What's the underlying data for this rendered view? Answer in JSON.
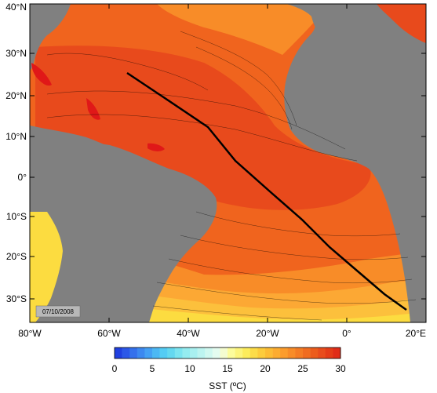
{
  "map": {
    "date_label": "07/10/2008",
    "lon_ticks": [
      "80°W",
      "60°W",
      "40°W",
      "20°W",
      "0°",
      "20°E"
    ],
    "lat_ticks": [
      "40°N",
      "30°N",
      "20°N",
      "10°N",
      "0°",
      "10°S",
      "20°S",
      "30°S"
    ],
    "colors": {
      "land": "#808080",
      "shelf": "#b8b8b8",
      "ocean_26_28": "#f0641e",
      "ocean_28_plus": "#e84a1c",
      "ocean_24_26": "#f88c28",
      "ocean_22_24": "#fca834",
      "ocean_20_22": "#fcc03c",
      "ocean_18_20": "#fcdc40",
      "ocean_16_18": "#fcf050",
      "ocean_cool": "#fcf878",
      "hot_spot": "#e01818",
      "contour": "#000000",
      "cruise_track": "#000000"
    }
  },
  "colorbar": {
    "title": "SST (ºC)",
    "labels": [
      "0",
      "5",
      "10",
      "15",
      "20",
      "25",
      "30"
    ],
    "colors": [
      "#2040e0",
      "#2c58e8",
      "#3470ec",
      "#3c88f0",
      "#44a0f4",
      "#4cb8f4",
      "#54ccf4",
      "#64d8f0",
      "#7ce4f0",
      "#94ecf0",
      "#a8f0f0",
      "#bcf4f0",
      "#d0f8f0",
      "#e4fcf0",
      "#f4fcd0",
      "#fcfc9c",
      "#fcf47c",
      "#fcec5c",
      "#fcdc48",
      "#fccc3c",
      "#fcbc34",
      "#fcac30",
      "#fc9c2c",
      "#f88c28",
      "#f47c24",
      "#f06c20",
      "#ec5c1c",
      "#e84c1c",
      "#e43c18",
      "#e02c18"
    ]
  }
}
